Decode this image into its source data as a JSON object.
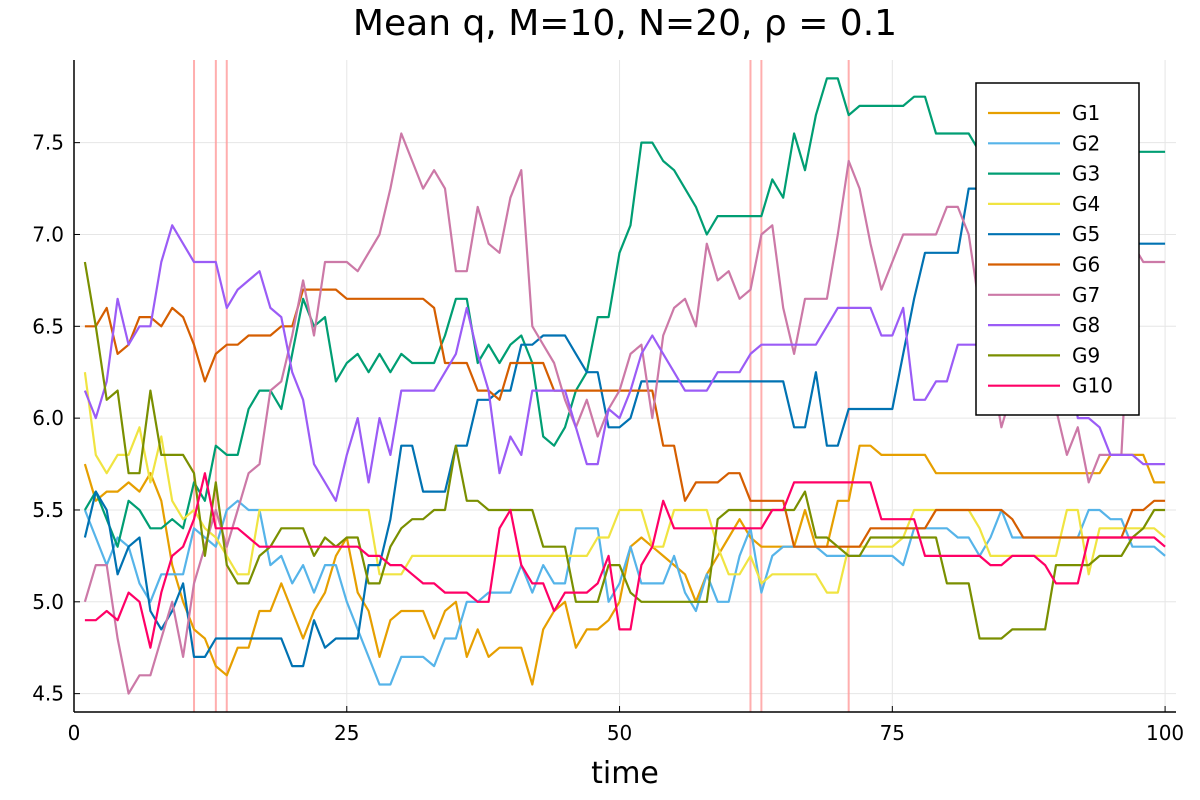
{
  "chart_data": {
    "type": "line",
    "title": "Mean q, M=10, N=20, ρ = 0.1",
    "xlabel": "time",
    "ylabel": "",
    "xlim": [
      0,
      101
    ],
    "ylim": [
      4.4,
      7.95
    ],
    "xticks": [
      0,
      25,
      50,
      75,
      100
    ],
    "yticks": [
      4.5,
      5.0,
      5.5,
      6.0,
      6.5,
      7.0,
      7.5
    ],
    "xtick_labels": [
      "0",
      "25",
      "50",
      "75",
      "100"
    ],
    "ytick_labels": [
      "4.5",
      "5.0",
      "5.5",
      "6.0",
      "6.5",
      "7.0",
      "7.5"
    ],
    "grid": true,
    "legend_position": "top-right",
    "vertical_lines": [
      11,
      13,
      14,
      62,
      63,
      71
    ],
    "vertical_line_color": "#ff9a9a",
    "x": [
      1,
      2,
      3,
      4,
      5,
      6,
      7,
      8,
      9,
      10,
      11,
      12,
      13,
      14,
      15,
      16,
      17,
      18,
      19,
      20,
      21,
      22,
      23,
      24,
      25,
      26,
      27,
      28,
      29,
      30,
      31,
      32,
      33,
      34,
      35,
      36,
      37,
      38,
      39,
      40,
      41,
      42,
      43,
      44,
      45,
      46,
      47,
      48,
      49,
      50,
      51,
      52,
      53,
      54,
      55,
      56,
      57,
      58,
      59,
      60,
      61,
      62,
      63,
      64,
      65,
      66,
      67,
      68,
      69,
      70,
      71,
      72,
      73,
      74,
      75,
      76,
      77,
      78,
      79,
      80,
      81,
      82,
      83,
      84,
      85,
      86,
      87,
      88,
      89,
      90,
      91,
      92,
      93,
      94,
      95,
      96,
      97,
      98,
      99,
      100
    ],
    "series": [
      {
        "name": "G1",
        "color": "#e69f00",
        "values": [
          5.75,
          5.55,
          5.6,
          5.6,
          5.65,
          5.6,
          5.7,
          5.55,
          5.2,
          5.0,
          4.85,
          4.8,
          4.65,
          4.6,
          4.75,
          4.75,
          4.95,
          4.95,
          5.1,
          4.95,
          4.8,
          4.95,
          5.05,
          5.25,
          5.35,
          5.05,
          4.95,
          4.7,
          4.9,
          4.95,
          4.95,
          4.95,
          4.8,
          4.95,
          5.0,
          4.7,
          4.85,
          4.7,
          4.75,
          4.75,
          4.75,
          4.55,
          4.85,
          4.95,
          5.0,
          4.75,
          4.85,
          4.85,
          4.9,
          5.0,
          5.3,
          5.35,
          5.3,
          5.25,
          5.2,
          5.15,
          5.0,
          5.15,
          5.25,
          5.35,
          5.45,
          5.35,
          5.3,
          5.3,
          5.3,
          5.3,
          5.5,
          5.3,
          5.3,
          5.55,
          5.55,
          5.85,
          5.85,
          5.8,
          5.8,
          5.8,
          5.8,
          5.8,
          5.7,
          5.7,
          5.7,
          5.7,
          5.7,
          5.7,
          5.7,
          5.7,
          5.7,
          5.7,
          5.7,
          5.7,
          5.7,
          5.7,
          5.7,
          5.7,
          5.8,
          5.8,
          5.8,
          5.8,
          5.65,
          5.65
        ]
      },
      {
        "name": "G2",
        "color": "#56b4e9",
        "values": [
          5.5,
          5.35,
          5.2,
          5.35,
          5.3,
          5.1,
          5.0,
          5.15,
          5.15,
          5.15,
          5.4,
          5.35,
          5.3,
          5.5,
          5.55,
          5.5,
          5.5,
          5.2,
          5.25,
          5.1,
          5.2,
          5.05,
          5.2,
          5.2,
          5.0,
          4.85,
          4.7,
          4.55,
          4.55,
          4.7,
          4.7,
          4.7,
          4.65,
          4.8,
          4.8,
          5.0,
          5.0,
          5.05,
          5.05,
          5.05,
          5.2,
          5.05,
          5.2,
          5.1,
          5.1,
          5.4,
          5.4,
          5.4,
          5.0,
          5.1,
          5.3,
          5.1,
          5.1,
          5.1,
          5.25,
          5.05,
          4.95,
          5.15,
          5.0,
          5.0,
          5.25,
          5.4,
          5.05,
          5.25,
          5.3,
          5.3,
          5.3,
          5.3,
          5.25,
          5.25,
          5.25,
          5.25,
          5.25,
          5.25,
          5.25,
          5.2,
          5.4,
          5.4,
          5.4,
          5.4,
          5.35,
          5.35,
          5.25,
          5.35,
          5.5,
          5.35,
          5.35,
          5.35,
          5.35,
          5.35,
          5.35,
          5.35,
          5.5,
          5.5,
          5.45,
          5.45,
          5.3,
          5.3,
          5.3,
          5.25
        ]
      },
      {
        "name": "G3",
        "color": "#009e73",
        "values": [
          5.5,
          5.6,
          5.45,
          5.3,
          5.55,
          5.5,
          5.4,
          5.4,
          5.45,
          5.4,
          5.65,
          5.55,
          5.85,
          5.8,
          5.8,
          6.05,
          6.15,
          6.15,
          6.05,
          6.35,
          6.65,
          6.5,
          6.55,
          6.2,
          6.3,
          6.35,
          6.25,
          6.35,
          6.25,
          6.35,
          6.3,
          6.3,
          6.3,
          6.45,
          6.65,
          6.65,
          6.3,
          6.4,
          6.3,
          6.4,
          6.45,
          6.3,
          5.9,
          5.85,
          5.95,
          6.15,
          6.25,
          6.55,
          6.55,
          6.9,
          7.05,
          7.5,
          7.5,
          7.4,
          7.35,
          7.25,
          7.15,
          7.0,
          7.1,
          7.1,
          7.1,
          7.1,
          7.1,
          7.3,
          7.2,
          7.55,
          7.35,
          7.65,
          7.85,
          7.85,
          7.65,
          7.7,
          7.7,
          7.7,
          7.7,
          7.7,
          7.75,
          7.75,
          7.55,
          7.55,
          7.55,
          7.55,
          7.45,
          7.45,
          7.45,
          7.45,
          7.45,
          7.45,
          7.45,
          7.45,
          7.45,
          7.45,
          7.45,
          7.45,
          7.45,
          7.45,
          7.45,
          7.45,
          7.45,
          7.45
        ]
      },
      {
        "name": "G4",
        "color": "#f0e442",
        "values": [
          6.25,
          5.8,
          5.7,
          5.8,
          5.8,
          5.95,
          5.65,
          5.9,
          5.55,
          5.45,
          5.5,
          5.4,
          5.35,
          5.25,
          5.15,
          5.15,
          5.5,
          5.5,
          5.5,
          5.5,
          5.5,
          5.5,
          5.5,
          5.5,
          5.5,
          5.5,
          5.5,
          5.15,
          5.15,
          5.15,
          5.25,
          5.25,
          5.25,
          5.25,
          5.25,
          5.25,
          5.25,
          5.25,
          5.25,
          5.25,
          5.25,
          5.25,
          5.25,
          5.25,
          5.25,
          5.25,
          5.25,
          5.35,
          5.35,
          5.5,
          5.5,
          5.5,
          5.3,
          5.3,
          5.5,
          5.5,
          5.5,
          5.5,
          5.3,
          5.15,
          5.15,
          5.25,
          5.1,
          5.15,
          5.15,
          5.15,
          5.15,
          5.15,
          5.05,
          5.05,
          5.3,
          5.3,
          5.3,
          5.3,
          5.3,
          5.35,
          5.5,
          5.5,
          5.5,
          5.5,
          5.5,
          5.5,
          5.4,
          5.25,
          5.25,
          5.25,
          5.25,
          5.25,
          5.25,
          5.25,
          5.5,
          5.5,
          5.15,
          5.4,
          5.4,
          5.4,
          5.4,
          5.4,
          5.4,
          5.35
        ]
      },
      {
        "name": "G5",
        "color": "#0072b2",
        "values": [
          5.35,
          5.6,
          5.5,
          5.15,
          5.3,
          5.35,
          4.95,
          4.85,
          4.95,
          5.1,
          4.7,
          4.7,
          4.8,
          4.8,
          4.8,
          4.8,
          4.8,
          4.8,
          4.8,
          4.65,
          4.65,
          4.9,
          4.75,
          4.8,
          4.8,
          4.8,
          5.2,
          5.2,
          5.45,
          5.85,
          5.85,
          5.6,
          5.6,
          5.6,
          5.85,
          5.85,
          6.1,
          6.1,
          6.15,
          6.15,
          6.4,
          6.4,
          6.45,
          6.45,
          6.45,
          6.35,
          6.25,
          6.25,
          5.95,
          5.95,
          6.0,
          6.2,
          6.2,
          6.2,
          6.2,
          6.2,
          6.2,
          6.2,
          6.2,
          6.2,
          6.2,
          6.2,
          6.2,
          6.2,
          6.2,
          5.95,
          5.95,
          6.25,
          5.85,
          5.85,
          6.05,
          6.05,
          6.05,
          6.05,
          6.05,
          6.35,
          6.65,
          6.9,
          6.9,
          6.9,
          6.9,
          7.25,
          7.25,
          7.25,
          7.2,
          7.1,
          7.05,
          7.05,
          7.05,
          7.05,
          7.05,
          7.05,
          7.05,
          7.0,
          7.0,
          6.95,
          6.95,
          6.95,
          6.95,
          6.95
        ]
      },
      {
        "name": "G6",
        "color": "#d55e00",
        "values": [
          6.5,
          6.5,
          6.6,
          6.35,
          6.4,
          6.55,
          6.55,
          6.5,
          6.6,
          6.55,
          6.4,
          6.2,
          6.35,
          6.4,
          6.4,
          6.45,
          6.45,
          6.45,
          6.5,
          6.5,
          6.7,
          6.7,
          6.7,
          6.7,
          6.65,
          6.65,
          6.65,
          6.65,
          6.65,
          6.65,
          6.65,
          6.65,
          6.6,
          6.3,
          6.3,
          6.3,
          6.15,
          6.15,
          6.1,
          6.3,
          6.3,
          6.3,
          6.3,
          6.15,
          6.15,
          6.15,
          6.15,
          6.15,
          6.15,
          6.15,
          6.15,
          6.15,
          6.15,
          5.85,
          5.85,
          5.55,
          5.65,
          5.65,
          5.65,
          5.7,
          5.7,
          5.55,
          5.55,
          5.55,
          5.55,
          5.3,
          5.3,
          5.3,
          5.3,
          5.3,
          5.3,
          5.3,
          5.4,
          5.4,
          5.4,
          5.4,
          5.4,
          5.4,
          5.5,
          5.5,
          5.5,
          5.5,
          5.5,
          5.5,
          5.5,
          5.45,
          5.35,
          5.35,
          5.35,
          5.35,
          5.35,
          5.35,
          5.35,
          5.35,
          5.35,
          5.35,
          5.5,
          5.5,
          5.55,
          5.55
        ]
      },
      {
        "name": "G7",
        "color": "#cc79a7",
        "values": [
          5.0,
          5.2,
          5.2,
          4.8,
          4.5,
          4.6,
          4.6,
          4.8,
          5.0,
          4.7,
          5.1,
          5.3,
          5.5,
          5.3,
          5.5,
          5.7,
          5.75,
          6.15,
          6.2,
          6.45,
          6.75,
          6.45,
          6.85,
          6.85,
          6.85,
          6.8,
          6.9,
          7.0,
          7.25,
          7.55,
          7.4,
          7.25,
          7.35,
          7.25,
          6.8,
          6.8,
          7.15,
          6.95,
          6.9,
          7.2,
          7.35,
          6.5,
          6.4,
          6.3,
          6.1,
          5.95,
          6.1,
          5.9,
          6.05,
          6.15,
          6.35,
          6.4,
          6.0,
          6.45,
          6.6,
          6.65,
          6.5,
          6.95,
          6.75,
          6.8,
          6.65,
          6.7,
          7.0,
          7.05,
          6.6,
          6.35,
          6.65,
          6.65,
          6.65,
          7.0,
          7.4,
          7.25,
          6.95,
          6.7,
          6.85,
          7.0,
          7.0,
          7.0,
          7.0,
          7.15,
          7.15,
          7.0,
          6.6,
          6.3,
          5.95,
          6.15,
          6.15,
          6.15,
          6.15,
          6.05,
          5.8,
          5.95,
          5.65,
          5.8,
          5.8,
          5.8,
          6.95,
          6.85,
          6.85,
          6.85
        ]
      },
      {
        "name": "G8",
        "color": "#9b5cf6",
        "values": [
          6.15,
          6.0,
          6.2,
          6.65,
          6.4,
          6.5,
          6.5,
          6.85,
          7.05,
          6.95,
          6.85,
          6.85,
          6.85,
          6.6,
          6.7,
          6.75,
          6.8,
          6.6,
          6.55,
          6.25,
          6.1,
          5.75,
          5.65,
          5.55,
          5.8,
          6.0,
          5.65,
          6.0,
          5.8,
          6.15,
          6.15,
          6.15,
          6.15,
          6.25,
          6.35,
          6.6,
          6.35,
          6.15,
          5.7,
          5.9,
          5.8,
          6.15,
          6.15,
          6.15,
          6.15,
          5.95,
          5.75,
          5.75,
          6.05,
          6.0,
          6.15,
          6.35,
          6.45,
          6.35,
          6.25,
          6.15,
          6.15,
          6.15,
          6.25,
          6.25,
          6.25,
          6.35,
          6.4,
          6.4,
          6.4,
          6.4,
          6.4,
          6.4,
          6.5,
          6.6,
          6.6,
          6.6,
          6.6,
          6.45,
          6.45,
          6.6,
          6.1,
          6.1,
          6.2,
          6.2,
          6.4,
          6.4,
          6.4,
          6.4,
          6.4,
          6.4,
          6.4,
          6.4,
          6.4,
          6.4,
          6.4,
          6.0,
          6.0,
          5.95,
          5.8,
          5.8,
          5.8,
          5.75,
          5.75,
          5.75
        ]
      },
      {
        "name": "G9",
        "color": "#7a8f00",
        "values": [
          6.85,
          6.5,
          6.1,
          6.15,
          5.7,
          5.7,
          6.15,
          5.8,
          5.8,
          5.8,
          5.7,
          5.25,
          5.65,
          5.2,
          5.1,
          5.1,
          5.25,
          5.3,
          5.4,
          5.4,
          5.4,
          5.25,
          5.35,
          5.3,
          5.35,
          5.35,
          5.1,
          5.1,
          5.3,
          5.4,
          5.45,
          5.45,
          5.5,
          5.5,
          5.85,
          5.55,
          5.55,
          5.5,
          5.5,
          5.5,
          5.5,
          5.5,
          5.3,
          5.3,
          5.3,
          5.0,
          5.0,
          5.0,
          5.2,
          5.2,
          5.05,
          5.0,
          5.0,
          5.0,
          5.0,
          5.0,
          5.0,
          5.0,
          5.45,
          5.5,
          5.5,
          5.5,
          5.5,
          5.5,
          5.5,
          5.5,
          5.6,
          5.35,
          5.35,
          5.3,
          5.25,
          5.25,
          5.35,
          5.35,
          5.35,
          5.35,
          5.35,
          5.35,
          5.35,
          5.1,
          5.1,
          5.1,
          4.8,
          4.8,
          4.8,
          4.85,
          4.85,
          4.85,
          4.85,
          5.2,
          5.2,
          5.2,
          5.2,
          5.25,
          5.25,
          5.25,
          5.35,
          5.4,
          5.5,
          5.5
        ]
      },
      {
        "name": "G10",
        "color": "#ff0066",
        "values": [
          4.9,
          4.9,
          4.95,
          4.9,
          5.05,
          5.0,
          4.75,
          5.05,
          5.25,
          5.3,
          5.45,
          5.7,
          5.4,
          5.4,
          5.4,
          5.35,
          5.3,
          5.3,
          5.3,
          5.3,
          5.3,
          5.3,
          5.3,
          5.3,
          5.3,
          5.3,
          5.25,
          5.25,
          5.2,
          5.2,
          5.15,
          5.1,
          5.1,
          5.05,
          5.05,
          5.05,
          5.0,
          5.0,
          5.4,
          5.5,
          5.2,
          5.1,
          5.1,
          4.95,
          5.05,
          5.05,
          5.05,
          5.1,
          5.25,
          4.85,
          4.85,
          5.2,
          5.3,
          5.55,
          5.4,
          5.4,
          5.4,
          5.4,
          5.4,
          5.4,
          5.4,
          5.4,
          5.4,
          5.5,
          5.5,
          5.65,
          5.65,
          5.65,
          5.65,
          5.65,
          5.65,
          5.65,
          5.65,
          5.45,
          5.45,
          5.45,
          5.45,
          5.25,
          5.25,
          5.25,
          5.25,
          5.25,
          5.25,
          5.2,
          5.2,
          5.25,
          5.25,
          5.25,
          5.2,
          5.1,
          5.1,
          5.1,
          5.35,
          5.35,
          5.35,
          5.35,
          5.35,
          5.35,
          5.35,
          5.3
        ]
      }
    ]
  }
}
